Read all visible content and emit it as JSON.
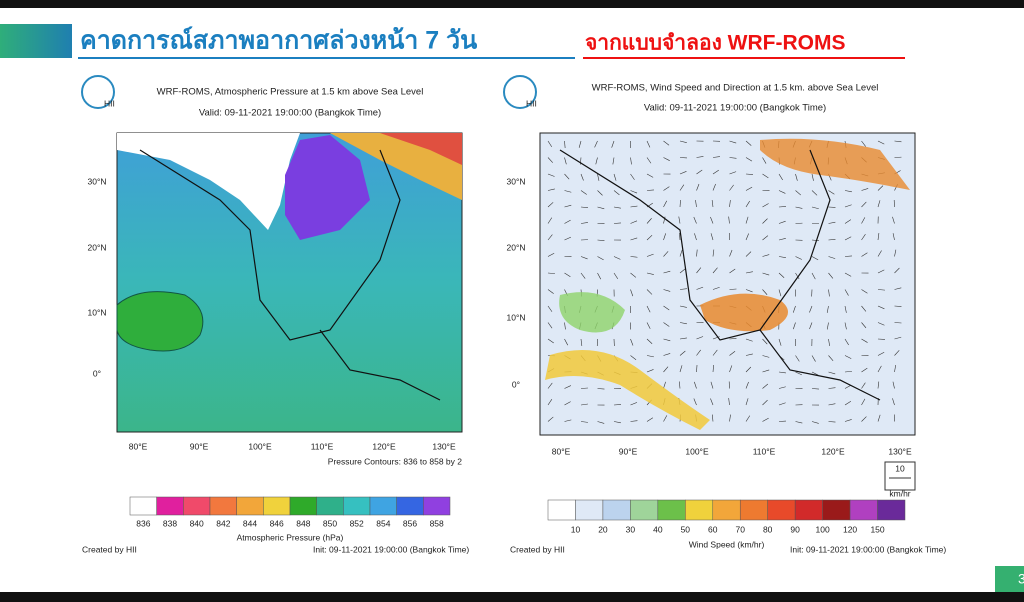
{
  "header": {
    "title_main": "คาดการณ์สภาพอากาศล่วงหน้า 7 วัน",
    "title_sub": "จากแบบจำลอง WRF-ROMS",
    "page_number": "3"
  },
  "left_panel": {
    "logo": "HII",
    "title": "WRF-ROMS, Atmospheric Pressure at 1.5 km above Sea Level",
    "valid": "Valid: 09-11-2021 19:00:00 (Bangkok Time)",
    "lat_labels": [
      "30°N",
      "20°N",
      "10°N",
      "0°"
    ],
    "lon_labels": [
      "80°E",
      "90°E",
      "100°E",
      "110°E",
      "120°E",
      "130°E"
    ],
    "contour_note": "Pressure Contours: 836 to 858 by 2",
    "colorbar": {
      "labels": [
        "836",
        "838",
        "840",
        "842",
        "844",
        "846",
        "848",
        "850",
        "852",
        "854",
        "856",
        "858"
      ],
      "title": "Atmospheric Pressure (hPa)"
    },
    "credit": "Created by HII",
    "init": "Init: 09-11-2021 19:00:00 (Bangkok Time)"
  },
  "right_panel": {
    "logo": "HII",
    "title": "WRF-ROMS, Wind Speed and Direction at 1.5 km. above Sea Level",
    "valid": "Valid: 09-11-2021 19:00:00 (Bangkok Time)",
    "lat_labels": [
      "30°N",
      "20°N",
      "10°N",
      "0°"
    ],
    "lon_labels": [
      "80°E",
      "90°E",
      "100°E",
      "110°E",
      "120°E",
      "130°E"
    ],
    "reference_vector": {
      "value": "10",
      "unit": "km/hr"
    },
    "colorbar": {
      "labels": [
        "10",
        "20",
        "30",
        "40",
        "50",
        "60",
        "70",
        "80",
        "90",
        "100",
        "120",
        "150"
      ],
      "title": "Wind Speed (km/hr)"
    },
    "credit": "Created by HII",
    "init": "Init: 09-11-2021 19:00:00 (Bangkok Time)"
  }
}
